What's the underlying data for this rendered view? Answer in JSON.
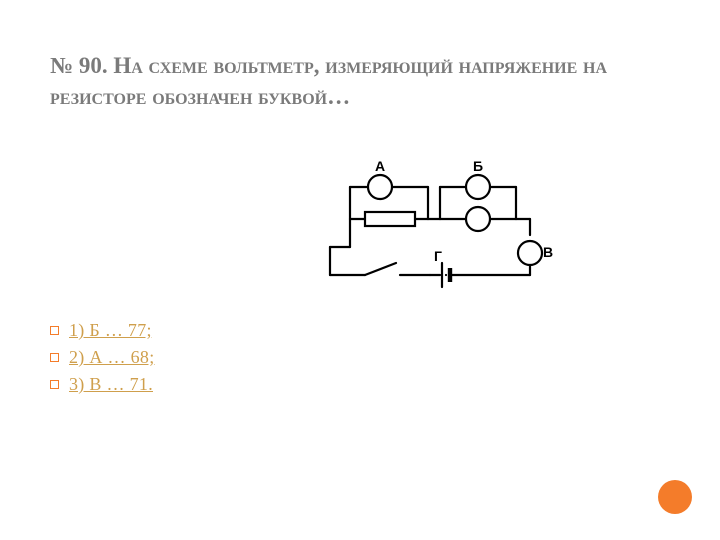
{
  "title": "№ 90. На схеме вольтметр, измеряющий напряжение на резисторе обозначен буквой…",
  "answers": [
    {
      "label": "1) Б … 77;"
    },
    {
      "label": "2) А … 68;"
    },
    {
      "label": "3) В … 71."
    }
  ],
  "diagram": {
    "labels": {
      "A": "А",
      "B": "Б",
      "V": "В",
      "G": "Г"
    },
    "stroke": "#000000",
    "stroke_width": 2.2,
    "label_fontsize": 14,
    "circle_radius": 12,
    "resistor": {
      "w": 50,
      "h": 14
    }
  },
  "colors": {
    "title": "#7a7a7a",
    "link": "#cf9f4c",
    "accent": "#f47c2a",
    "bg": "#ffffff"
  }
}
